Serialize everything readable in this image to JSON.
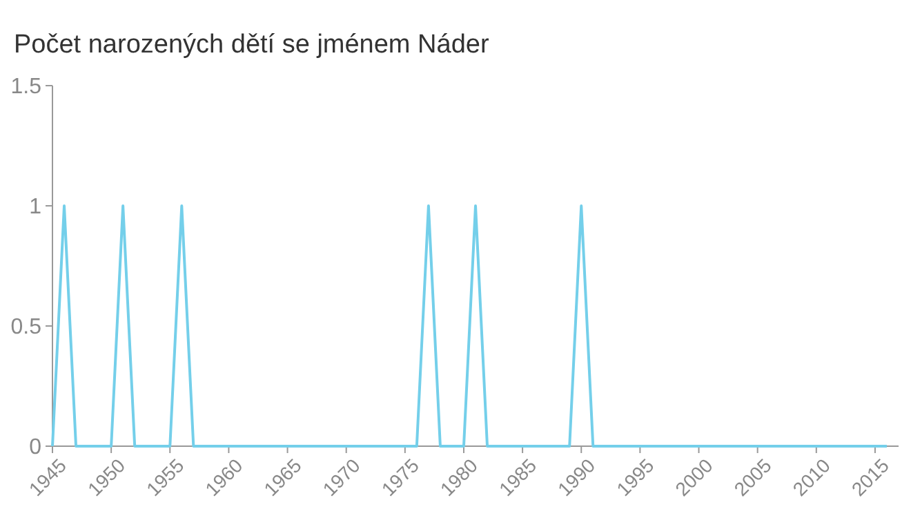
{
  "chart_data": {
    "type": "line",
    "title": "Počet narozených dětí se jménem Náder",
    "x": [
      1945,
      1946,
      1947,
      1948,
      1949,
      1950,
      1951,
      1952,
      1953,
      1954,
      1955,
      1956,
      1957,
      1958,
      1959,
      1960,
      1961,
      1962,
      1963,
      1964,
      1965,
      1966,
      1967,
      1968,
      1969,
      1970,
      1971,
      1972,
      1973,
      1974,
      1975,
      1976,
      1977,
      1978,
      1979,
      1980,
      1981,
      1982,
      1983,
      1984,
      1985,
      1986,
      1987,
      1988,
      1989,
      1990,
      1991,
      1992,
      1993,
      1994,
      1995,
      1996,
      1997,
      1998,
      1999,
      2000,
      2001,
      2002,
      2003,
      2004,
      2005,
      2006,
      2007,
      2008,
      2009,
      2010,
      2011,
      2012,
      2013,
      2014,
      2015,
      2016
    ],
    "series": [
      {
        "color": "#74cfea",
        "values": [
          0,
          1,
          0,
          0,
          0,
          0,
          1,
          0,
          0,
          0,
          0,
          1,
          0,
          0,
          0,
          0,
          0,
          0,
          0,
          0,
          0,
          0,
          0,
          0,
          0,
          0,
          0,
          0,
          0,
          0,
          0,
          0,
          1,
          0,
          0,
          0,
          1,
          0,
          0,
          0,
          0,
          0,
          0,
          0,
          0,
          1,
          0,
          0,
          0,
          0,
          0,
          0,
          0,
          0,
          0,
          0,
          0,
          0,
          0,
          0,
          0,
          0,
          0,
          0,
          0,
          0,
          0,
          0,
          0,
          0,
          0,
          0
        ]
      }
    ],
    "xlim": [
      1945,
      2017
    ],
    "xticks": [
      1945,
      1950,
      1955,
      1960,
      1965,
      1970,
      1975,
      1980,
      1985,
      1990,
      1995,
      2000,
      2005,
      2010,
      2015
    ],
    "ylim": [
      0,
      1.5
    ],
    "yticks": [
      0,
      0.5,
      1,
      1.5
    ],
    "grid": false,
    "marker": "none",
    "line_style": "solid"
  }
}
